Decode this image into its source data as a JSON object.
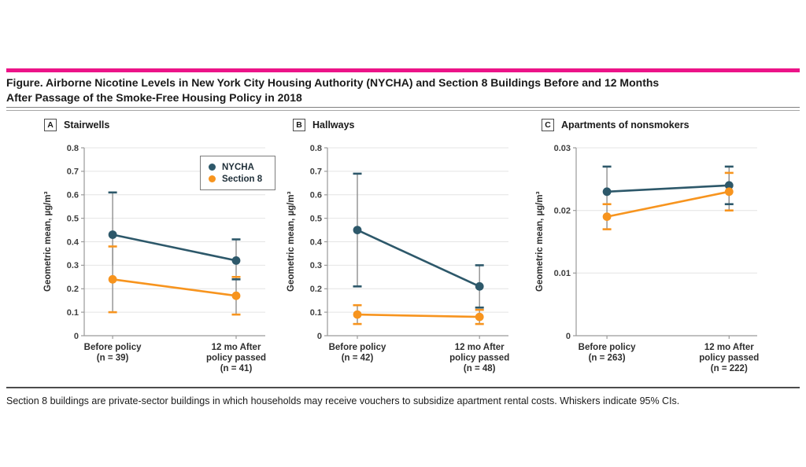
{
  "figure": {
    "title_line1": "Figure. Airborne Nicotine Levels in New York City Housing Authority (NYCHA) and Section 8 Buildings Before and 12 Months",
    "title_line2": "After Passage of the Smoke-Free Housing Policy in 2018",
    "footnote": "Section 8 buildings are private-sector buildings in which households may receive vouchers to subsidize apartment rental costs. Whiskers indicate 95% CIs.",
    "accent_color": "#ec1388"
  },
  "legend": {
    "items": [
      {
        "label": "NYCHA",
        "color": "#2d586a"
      },
      {
        "label": "Section 8",
        "color": "#f7941e"
      }
    ]
  },
  "chart_data": [
    {
      "type": "line",
      "panel_label": "A",
      "title": "Stairwells",
      "ylabel": "Geometric mean, µg/m³",
      "xlabel": "",
      "ylim": [
        0,
        0.8
      ],
      "grid": true,
      "legend_position": "top-right-panel-A",
      "yticks": [
        0,
        0.1,
        0.2,
        0.3,
        0.4,
        0.5,
        0.6,
        0.7,
        0.8
      ],
      "ytick_labels": [
        "0",
        "0.1",
        "0.2",
        "0.3",
        "0.4",
        "0.5",
        "0.6",
        "0.7",
        "0.8"
      ],
      "x_positions": [
        0.157,
        0.839
      ],
      "categories": [
        [
          "Before policy",
          "(n = 39)"
        ],
        [
          "12 mo After",
          "policy passed",
          "(n = 41)"
        ]
      ],
      "series": [
        {
          "name": "NYCHA",
          "color": "#2d586a",
          "points": [
            {
              "y": 0.43,
              "lo": 0.3,
              "hi": 0.61,
              "cap_lo": false
            },
            {
              "y": 0.32,
              "lo": 0.24,
              "hi": 0.41
            }
          ]
        },
        {
          "name": "Section 8",
          "color": "#f7941e",
          "points": [
            {
              "y": 0.24,
              "lo": 0.1,
              "hi": 0.38
            },
            {
              "y": 0.17,
              "lo": 0.09,
              "hi": 0.25
            }
          ]
        }
      ]
    },
    {
      "type": "line",
      "panel_label": "B",
      "title": "Hallways",
      "ylabel": "Geometric mean, µg/m³",
      "xlabel": "",
      "ylim": [
        0,
        0.8
      ],
      "grid": true,
      "yticks": [
        0,
        0.1,
        0.2,
        0.3,
        0.4,
        0.5,
        0.6,
        0.7,
        0.8
      ],
      "ytick_labels": [
        "0",
        "0.1",
        "0.2",
        "0.3",
        "0.4",
        "0.5",
        "0.6",
        "0.7",
        "0.8"
      ],
      "x_positions": [
        0.165,
        0.84
      ],
      "categories": [
        [
          "Before policy",
          "(n = 42)"
        ],
        [
          "12 mo After",
          "policy passed",
          "(n = 48)"
        ]
      ],
      "series": [
        {
          "name": "NYCHA",
          "color": "#2d586a",
          "points": [
            {
              "y": 0.45,
              "lo": 0.21,
              "hi": 0.69
            },
            {
              "y": 0.21,
              "lo": 0.12,
              "hi": 0.3
            }
          ]
        },
        {
          "name": "Section 8",
          "color": "#f7941e",
          "points": [
            {
              "y": 0.09,
              "lo": 0.05,
              "hi": 0.13
            },
            {
              "y": 0.08,
              "lo": 0.05,
              "hi": 0.11
            }
          ]
        }
      ]
    },
    {
      "type": "line",
      "panel_label": "C",
      "title": "Apartments of nonsmokers",
      "ylabel": "Geometric mean, µg/m³",
      "xlabel": "",
      "ylim": [
        0,
        0.03
      ],
      "grid": true,
      "yticks": [
        0,
        0.01,
        0.02,
        0.03
      ],
      "ytick_labels": [
        "0",
        "0.01",
        "0.02",
        "0.03"
      ],
      "x_positions": [
        0.17,
        0.845
      ],
      "categories": [
        [
          "Before policy",
          "(n = 263)"
        ],
        [
          "12 mo After",
          "policy passed",
          "(n = 222)"
        ]
      ],
      "series": [
        {
          "name": "NYCHA",
          "color": "#2d586a",
          "points": [
            {
              "y": 0.023,
              "lo": 0.021,
              "hi": 0.027,
              "cap_lo": false
            },
            {
              "y": 0.024,
              "lo": 0.021,
              "hi": 0.027
            }
          ]
        },
        {
          "name": "Section 8",
          "color": "#f7941e",
          "points": [
            {
              "y": 0.019,
              "lo": 0.017,
              "hi": 0.021
            },
            {
              "y": 0.023,
              "lo": 0.02,
              "hi": 0.026
            }
          ]
        }
      ]
    }
  ]
}
